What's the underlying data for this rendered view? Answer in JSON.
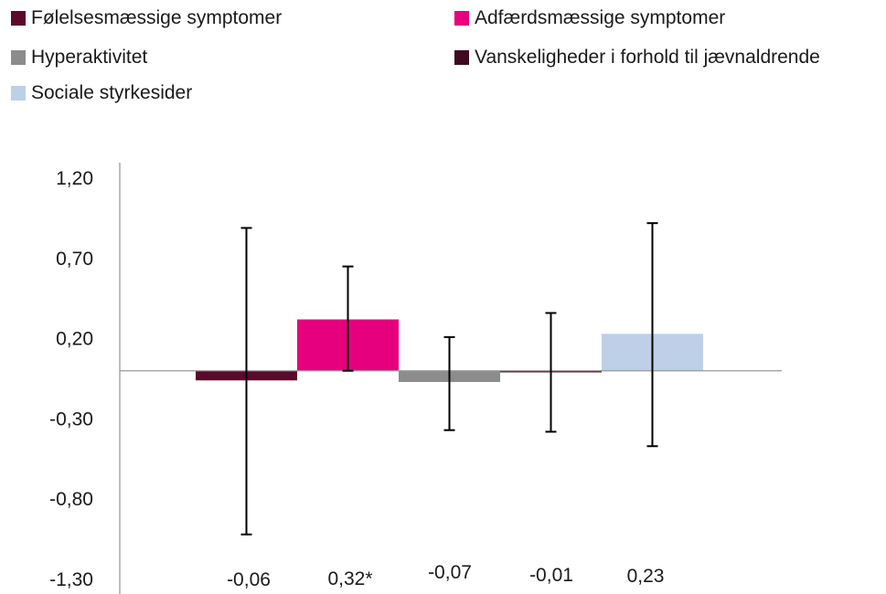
{
  "chart_data": {
    "type": "bar",
    "title": "",
    "xlabel": "",
    "ylabel": "",
    "ylim": [
      -1.3,
      1.2
    ],
    "y_ticks": [
      "1,20",
      "0,70",
      "0,20",
      "-0,30",
      "-0,80",
      "-1,30"
    ],
    "y_tick_values": [
      1.2,
      0.7,
      0.2,
      -0.3,
      -0.8,
      -1.3
    ],
    "legend_position": "top",
    "grid": false,
    "series": [
      {
        "name": "Følelsesmæssige symptomer",
        "value": -0.06,
        "label": "-0,06",
        "error_low": -1.02,
        "error_high": 0.89,
        "color": "#5b0a2c"
      },
      {
        "name": "Adfærdsmæssige symptomer",
        "value": 0.32,
        "label": "0,32*",
        "error_low": 0.0,
        "error_high": 0.65,
        "color": "#e6007e"
      },
      {
        "name": "Hyperaktivitet",
        "value": -0.07,
        "label": "-0,07",
        "error_low": -0.37,
        "error_high": 0.21,
        "color": "#8c8c8c"
      },
      {
        "name": "Vanskeligheder i forhold til jævnaldrende",
        "value": -0.01,
        "label": "-0,01",
        "error_low": -0.38,
        "error_high": 0.36,
        "color": "#3f0a1f"
      },
      {
        "name": "Sociale styrkesider",
        "value": 0.23,
        "label": "0,23",
        "error_low": -0.47,
        "error_high": 0.92,
        "color": "#bdd0e8"
      }
    ]
  }
}
